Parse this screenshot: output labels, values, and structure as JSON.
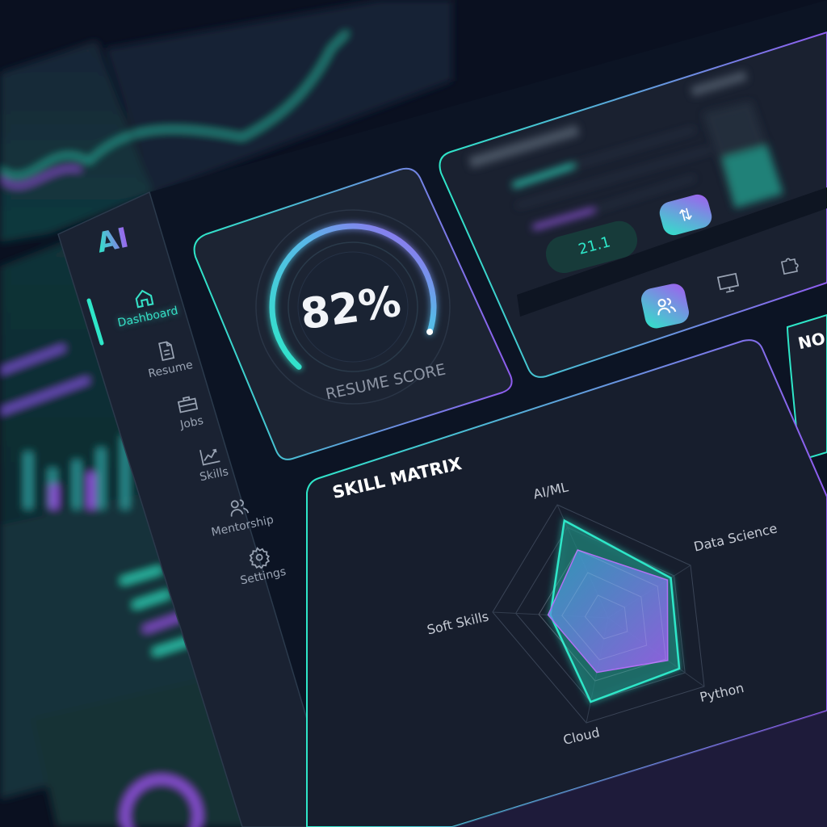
{
  "app": {
    "logo_text": "AI"
  },
  "sidebar": {
    "items": [
      {
        "label": "Dashboard",
        "icon": "home-icon",
        "active": true
      },
      {
        "label": "Resume",
        "icon": "document-icon",
        "active": false
      },
      {
        "label": "Jobs",
        "icon": "briefcase-icon",
        "active": false
      },
      {
        "label": "Skills",
        "icon": "trend-chart-icon",
        "active": false
      },
      {
        "label": "Mentorship",
        "icon": "users-icon",
        "active": false
      },
      {
        "label": "Settings",
        "icon": "gear-icon",
        "active": false
      }
    ]
  },
  "score_card": {
    "value": "82%",
    "label": "RESUME SCORE",
    "progress": 0.82
  },
  "top_card": {
    "value_pill": "21.1",
    "swap_icon": "swap-vertical-icon",
    "tab_icons": [
      "users-icon",
      "monitor-icon",
      "puzzle-icon"
    ]
  },
  "right_card": {
    "title_partial": "NO"
  },
  "skill_matrix": {
    "title": "SKILL MATRIX"
  },
  "colors": {
    "teal": "#2ee6c8",
    "purple": "#a35cf0",
    "background": "#0a1020",
    "panel": "#161d2c"
  },
  "chart_data": {
    "type": "radar",
    "title": "SKILL MATRIX",
    "categories": [
      "AI/ML",
      "Data Science",
      "Python",
      "Cloud",
      "Soft Skills"
    ],
    "range": [
      0,
      1
    ],
    "rings": 5,
    "series": [
      {
        "values": [
          0.86,
          0.76,
          0.74,
          0.8,
          0.5
        ],
        "color": "#2ee6c8"
      },
      {
        "values": [
          0.6,
          0.72,
          0.62,
          0.52,
          0.52
        ],
        "color": "#a35cf0"
      }
    ]
  }
}
